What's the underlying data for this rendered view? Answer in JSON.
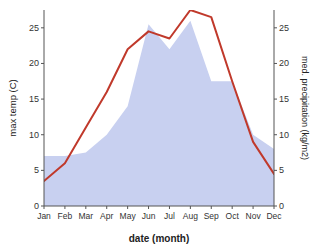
{
  "chart_data": {
    "type": "line",
    "categories": [
      "Jan",
      "Feb",
      "Mar",
      "Apr",
      "May",
      "Jun",
      "Jul",
      "Aug",
      "Sep",
      "Oct",
      "Nov",
      "Dec"
    ],
    "xlabel": "date (month)",
    "ylabel": "max temp (C)",
    "y2label": "med. precipitation (kg/m2)",
    "ylim": [
      0,
      27.5
    ],
    "yticks": [
      0,
      5,
      10,
      15,
      20,
      25
    ],
    "y2lim": [
      0,
      27.5
    ],
    "y2ticks": [
      0,
      5,
      10,
      15,
      20,
      25
    ],
    "grid": false,
    "series": [
      {
        "type": "area",
        "axis": "y2",
        "color": "#c8d0f0",
        "values": [
          7.0,
          7.0,
          7.5,
          10.0,
          14.0,
          25.5,
          22.0,
          26.0,
          17.5,
          17.5,
          10.0,
          8.0
        ]
      },
      {
        "type": "line",
        "axis": "y",
        "color": "#c0392b",
        "values": [
          3.5,
          6.0,
          11.0,
          16.0,
          22.0,
          24.5,
          23.5,
          27.5,
          26.5,
          17.5,
          9.0,
          4.5
        ]
      }
    ]
  }
}
